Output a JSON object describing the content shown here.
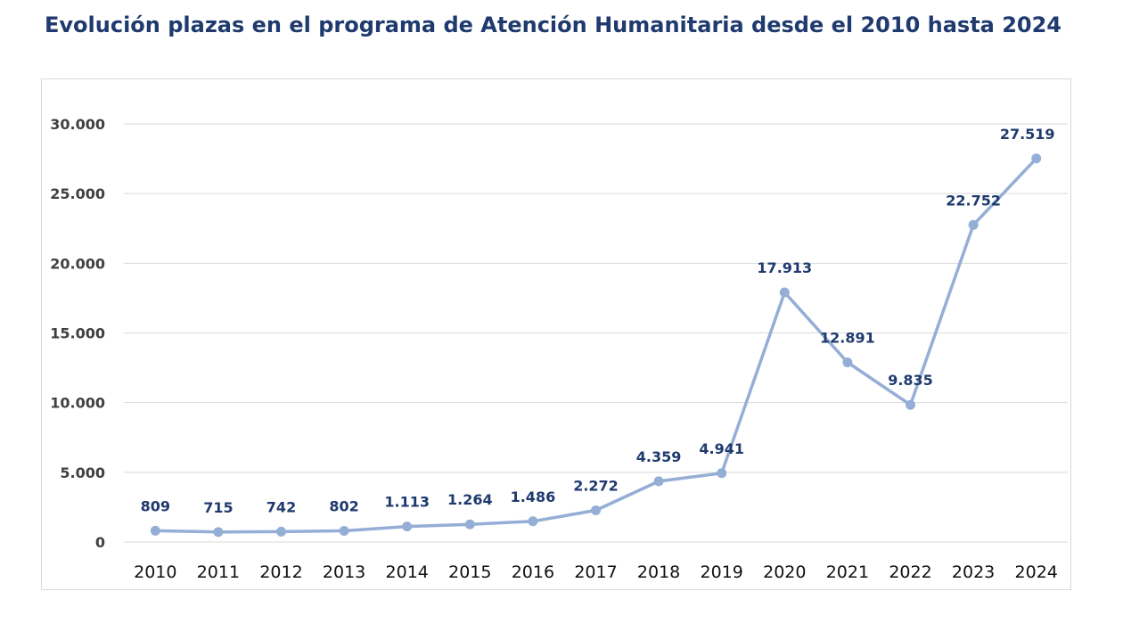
{
  "title": "Evolución plazas en el programa de Atención Humanitaria desde el 2010 hasta 2024",
  "chart_data": {
    "type": "line",
    "title": "Evolución plazas en el programa de Atención Humanitaria desde el 2010 hasta 2024",
    "xlabel": "",
    "ylabel": "",
    "categories": [
      "2010",
      "2011",
      "2012",
      "2013",
      "2014",
      "2015",
      "2016",
      "2017",
      "2018",
      "2019",
      "2020",
      "2021",
      "2022",
      "2023",
      "2024"
    ],
    "values": [
      809,
      715,
      742,
      802,
      1113,
      1264,
      1486,
      2272,
      4359,
      4941,
      17913,
      12891,
      9835,
      22752,
      27519
    ],
    "data_labels": [
      "809",
      "715",
      "742",
      "802",
      "1.113",
      "1.264",
      "1.486",
      "2.272",
      "4.359",
      "4.941",
      "17.913",
      "12.891",
      "9.835",
      "22.752",
      "27.519"
    ],
    "yticks": [
      0,
      5000,
      10000,
      15000,
      20000,
      25000,
      30000
    ],
    "ytick_labels": [
      "0",
      "5.000",
      "10.000",
      "15.000",
      "20.000",
      "25.000",
      "30.000"
    ],
    "ylim": [
      0,
      30000
    ],
    "grid": true,
    "legend": "none",
    "line_color": "#95aed6",
    "label_color": "#1f3a6e"
  }
}
